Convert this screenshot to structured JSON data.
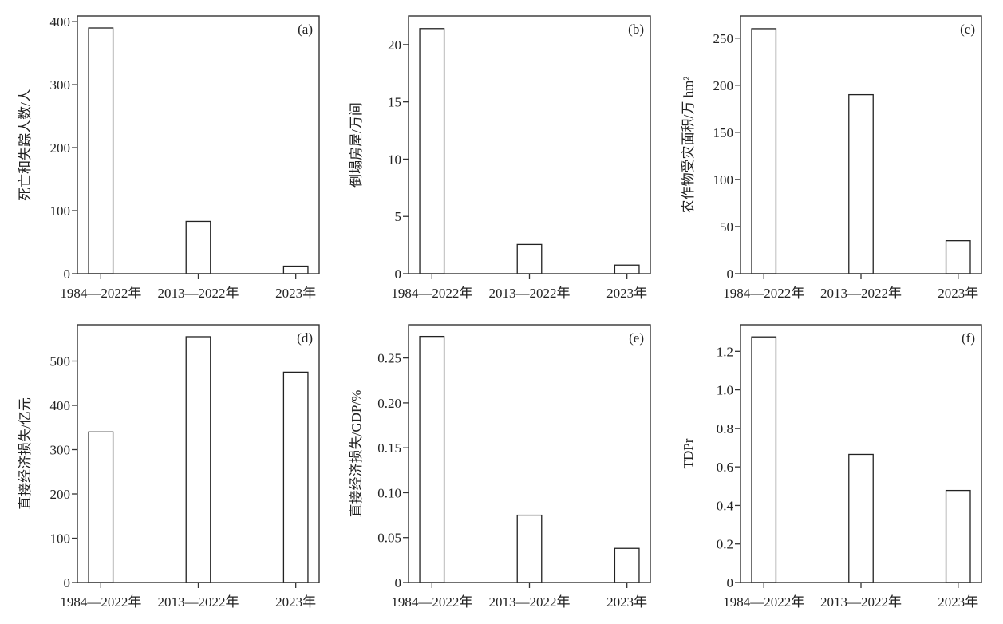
{
  "chart_data": [
    {
      "type": "bar",
      "panel_label": "(a)",
      "ylabel": "死亡和失踪人数/人",
      "categories": [
        "1984—2022年",
        "2013—2022年",
        "2023年"
      ],
      "values": [
        390,
        83,
        12
      ],
      "ylim": [
        0,
        409
      ],
      "yticks": [
        0,
        100,
        200,
        300,
        400
      ],
      "ytick_labels": [
        "0",
        "100",
        "200",
        "300",
        "400"
      ],
      "grid": false
    },
    {
      "type": "bar",
      "panel_label": "(b)",
      "ylabel": "倒塌房屋/万间",
      "categories": [
        "1984—2022年",
        "2013—2022年",
        "2023年"
      ],
      "values": [
        21.4,
        2.55,
        0.75
      ],
      "ylim": [
        0,
        22.5
      ],
      "yticks": [
        0,
        5,
        10,
        15,
        20
      ],
      "ytick_labels": [
        "0",
        "5",
        "10",
        "15",
        "20"
      ],
      "grid": false
    },
    {
      "type": "bar",
      "panel_label": "(c)",
      "ylabel": "农作物受灾面积/万 hm²",
      "categories": [
        "1984—2022年",
        "2013—2022年",
        "2023年"
      ],
      "values": [
        260,
        190,
        35
      ],
      "ylim": [
        0,
        273.5
      ],
      "yticks": [
        0,
        50,
        100,
        150,
        200,
        250
      ],
      "ytick_labels": [
        "0",
        "50",
        "100",
        "150",
        "200",
        "250"
      ],
      "grid": false
    },
    {
      "type": "bar",
      "panel_label": "(d)",
      "ylabel": "直接经济损失/亿元",
      "categories": [
        "1984—2022年",
        "2013—2022年",
        "2023年"
      ],
      "values": [
        340,
        555,
        475
      ],
      "ylim": [
        0,
        582
      ],
      "yticks": [
        0,
        100,
        200,
        300,
        400,
        500
      ],
      "ytick_labels": [
        "0",
        "100",
        "200",
        "300",
        "400",
        "500"
      ],
      "grid": false
    },
    {
      "type": "bar",
      "panel_label": "(e)",
      "ylabel": "直接经济损失/GDP/%",
      "categories": [
        "1984—2022年",
        "2013—2022年",
        "2023年"
      ],
      "values": [
        0.274,
        0.075,
        0.038
      ],
      "ylim": [
        0,
        0.287
      ],
      "yticks": [
        0,
        0.05,
        0.1,
        0.15,
        0.2,
        0.25
      ],
      "ytick_labels": [
        "0",
        "0.05",
        "0.10",
        "0.15",
        "0.20",
        "0.25"
      ],
      "grid": false
    },
    {
      "type": "bar",
      "panel_label": "(f)",
      "ylabel": "TDPr",
      "categories": [
        "1984—2022年",
        "2013—2022年",
        "2023年"
      ],
      "values": [
        1.275,
        0.665,
        0.478
      ],
      "ylim": [
        0,
        1.338
      ],
      "yticks": [
        0,
        0.2,
        0.4,
        0.6,
        0.8,
        1.0,
        1.2
      ],
      "ytick_labels": [
        "0",
        "0.2",
        "0.4",
        "0.6",
        "0.8",
        "1.0",
        "1.2"
      ],
      "grid": false
    }
  ],
  "colors": {
    "bar_fill": "#ffffff",
    "bar_stroke": "#222222",
    "axis": "#333333"
  }
}
